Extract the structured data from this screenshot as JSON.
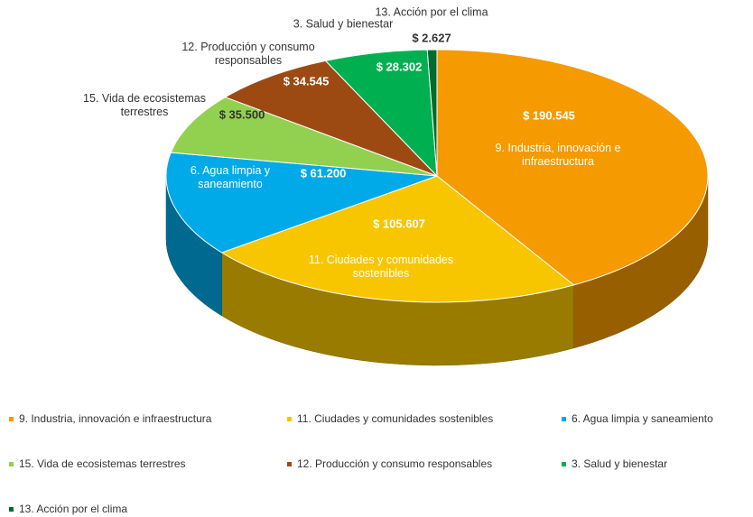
{
  "chart_data": {
    "type": "pie3d",
    "categories": [
      "9. Industria, innovación e infraestructura",
      "11. Ciudades y comunidades sostenibles",
      "6. Agua limpia y saneamiento",
      "15. Vida de ecosistemas terrestres",
      "12. Producción y consumo responsables",
      "3. Salud y bienestar",
      "13. Acción por el clima"
    ],
    "values": [
      190545,
      105607,
      61200,
      35500,
      34545,
      28302,
      2627
    ],
    "value_labels": [
      "$ 190.545",
      "$ 105.607",
      "$ 61.200",
      "$ 35.500",
      "$ 34.545",
      "$ 28.302",
      "$ 2.627"
    ],
    "colors": [
      "#f59a00",
      "#f7c600",
      "#00aae8",
      "#92d050",
      "#9c4a12",
      "#00b050",
      "#006b30"
    ],
    "legend": "bottom"
  }
}
